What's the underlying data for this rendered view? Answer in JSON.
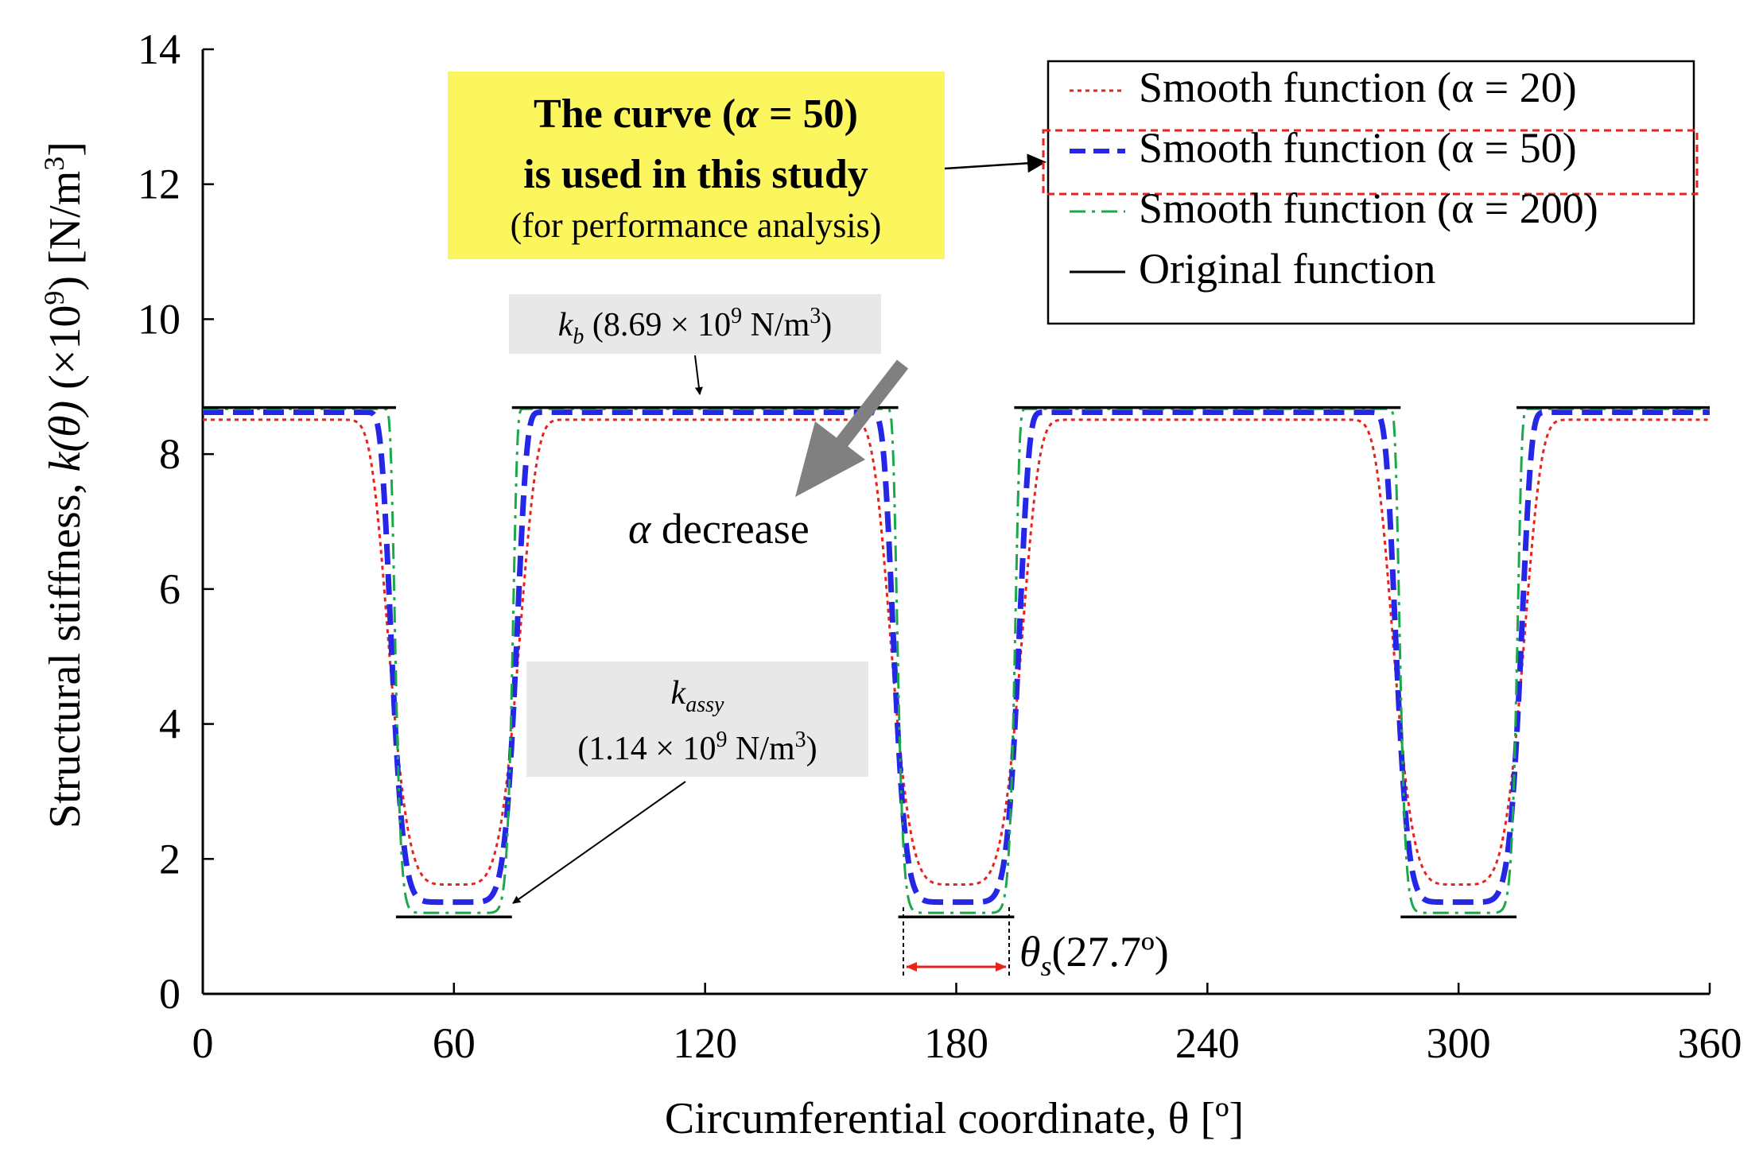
{
  "chart_data": {
    "type": "line",
    "xlabel": "Circumferential coordinate, θ [º]",
    "ylabel_parts": {
      "prefix": "Structural stiffness, ",
      "symbol": "k(θ)",
      "suffix": " (×10",
      "suffix_sup": "9",
      "suffix2": ") [N/m",
      "suffix2_sup": "3",
      "suffix3": "]"
    },
    "xlim": [
      0,
      360
    ],
    "ylim": [
      0,
      14
    ],
    "xticks": [
      0,
      60,
      120,
      180,
      240,
      300,
      360
    ],
    "yticks": [
      0,
      2,
      4,
      6,
      8,
      10,
      12,
      14
    ],
    "grid": false,
    "legend_position": "top-right",
    "k_b": 8.69,
    "k_assy": 1.14,
    "theta_s_deg": 27.7,
    "low_centers_deg": [
      60,
      180,
      300
    ],
    "series": [
      {
        "name": "Smooth function (α = 20)",
        "alpha": 20,
        "color": "#e8231c",
        "style": "dotted",
        "min_value": 1.62
      },
      {
        "name": "Smooth function (α = 50)",
        "alpha": 50,
        "color": "#2626e6",
        "style": "dashed",
        "min_value": 1.36
      },
      {
        "name": "Smooth function (α = 200)",
        "alpha": 200,
        "color": "#1aa84a",
        "style": "dashdot",
        "min_value": 1.2
      },
      {
        "name": "Original function",
        "color": "#000000",
        "style": "solid"
      }
    ],
    "annotations": {
      "callout_line1": "The curve (",
      "callout_symbol": "α",
      "callout_eq": " = 50)",
      "callout_line2": "is used in this study",
      "callout_line3": "(for performance analysis)",
      "kb_symbol": "k",
      "kb_sub": "b",
      "kb_value": " (8.69 × 10",
      "kb_sup": "9",
      "kb_unit": " N/m",
      "kb_unit_sup": "3",
      "kb_close": ")",
      "kassy_symbol": "k",
      "kassy_sub": "assy",
      "kassy_value": "(1.14 × 10",
      "kassy_sup": "9",
      "kassy_unit": " N/m",
      "kassy_unit_sup": "3",
      "kassy_close": ")",
      "alpha_decrease_symbol": "α",
      "alpha_decrease_text": " decrease",
      "theta_symbol": "θ",
      "theta_sub": "s",
      "theta_value": "(27.7º)"
    }
  }
}
